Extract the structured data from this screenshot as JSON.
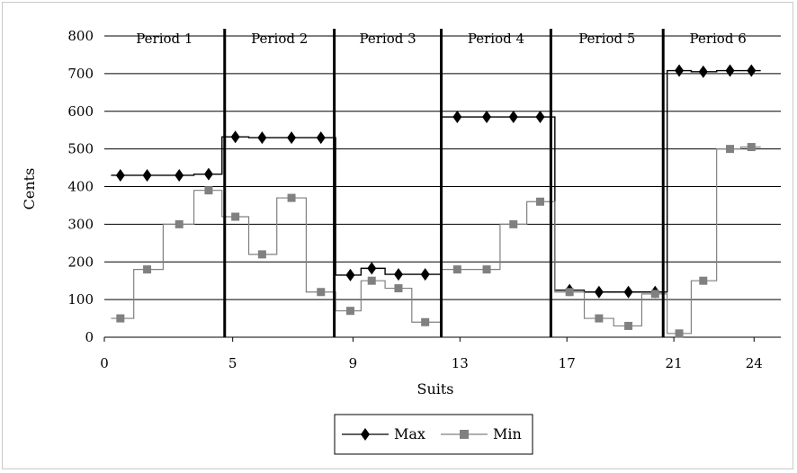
{
  "chart_data": {
    "type": "line",
    "xlabel": "Suits",
    "ylabel": "Cents",
    "xlim": [
      0,
      24
    ],
    "ylim": [
      0,
      800
    ],
    "y_ticks": [
      0,
      100,
      200,
      300,
      400,
      500,
      600,
      700,
      800
    ],
    "x_tick_labels": [
      {
        "value": 0,
        "label": "0"
      },
      {
        "value": 4.8,
        "label": "5"
      },
      {
        "value": 9.3,
        "label": "9"
      },
      {
        "value": 13.3,
        "label": "13"
      },
      {
        "value": 17.3,
        "label": "17"
      },
      {
        "value": 21.3,
        "label": "21"
      },
      {
        "value": 24.3,
        "label": "24"
      }
    ],
    "grid": true,
    "legend_position": "bottom-center",
    "periods": [
      {
        "label": "Period 1",
        "start": 0,
        "end": 4.5
      },
      {
        "label": "Period 2",
        "start": 4.5,
        "end": 8.6
      },
      {
        "label": "Period 3",
        "start": 8.6,
        "end": 12.6
      },
      {
        "label": "Period 4",
        "start": 12.6,
        "end": 16.7
      },
      {
        "label": "Period 5",
        "start": 16.7,
        "end": 20.9
      },
      {
        "label": "Period 6",
        "start": 20.9,
        "end": 25
      }
    ],
    "series": [
      {
        "name": "Max",
        "color": "#000000",
        "marker": "diamond",
        "points": [
          [
            0.6,
            430
          ],
          [
            1.6,
            430
          ],
          [
            2.8,
            430
          ],
          [
            3.9,
            433
          ],
          [
            4.9,
            532
          ],
          [
            5.9,
            530
          ],
          [
            7.0,
            530
          ],
          [
            8.1,
            530
          ],
          [
            9.2,
            165
          ],
          [
            10.0,
            183
          ],
          [
            11.0,
            167
          ],
          [
            12.0,
            167
          ],
          [
            13.2,
            585
          ],
          [
            14.3,
            585
          ],
          [
            15.3,
            585
          ],
          [
            16.3,
            585
          ],
          [
            17.4,
            125
          ],
          [
            18.5,
            120
          ],
          [
            19.6,
            120
          ],
          [
            20.6,
            120
          ],
          [
            21.5,
            708
          ],
          [
            22.4,
            705
          ],
          [
            23.4,
            708
          ],
          [
            24.2,
            708
          ]
        ]
      },
      {
        "name": "Min",
        "color": "#808080",
        "marker": "square",
        "points": [
          [
            0.6,
            50
          ],
          [
            1.6,
            180
          ],
          [
            2.8,
            300
          ],
          [
            3.9,
            390
          ],
          [
            4.9,
            320
          ],
          [
            5.9,
            220
          ],
          [
            7.0,
            370
          ],
          [
            8.1,
            120
          ],
          [
            9.2,
            70
          ],
          [
            10.0,
            150
          ],
          [
            11.0,
            130
          ],
          [
            12.0,
            40
          ],
          [
            13.2,
            180
          ],
          [
            14.3,
            180
          ],
          [
            15.3,
            300
          ],
          [
            16.3,
            360
          ],
          [
            17.4,
            120
          ],
          [
            18.5,
            50
          ],
          [
            19.6,
            30
          ],
          [
            20.6,
            115
          ],
          [
            21.5,
            10
          ],
          [
            22.4,
            150
          ],
          [
            23.4,
            500
          ],
          [
            24.2,
            505
          ]
        ]
      }
    ]
  }
}
